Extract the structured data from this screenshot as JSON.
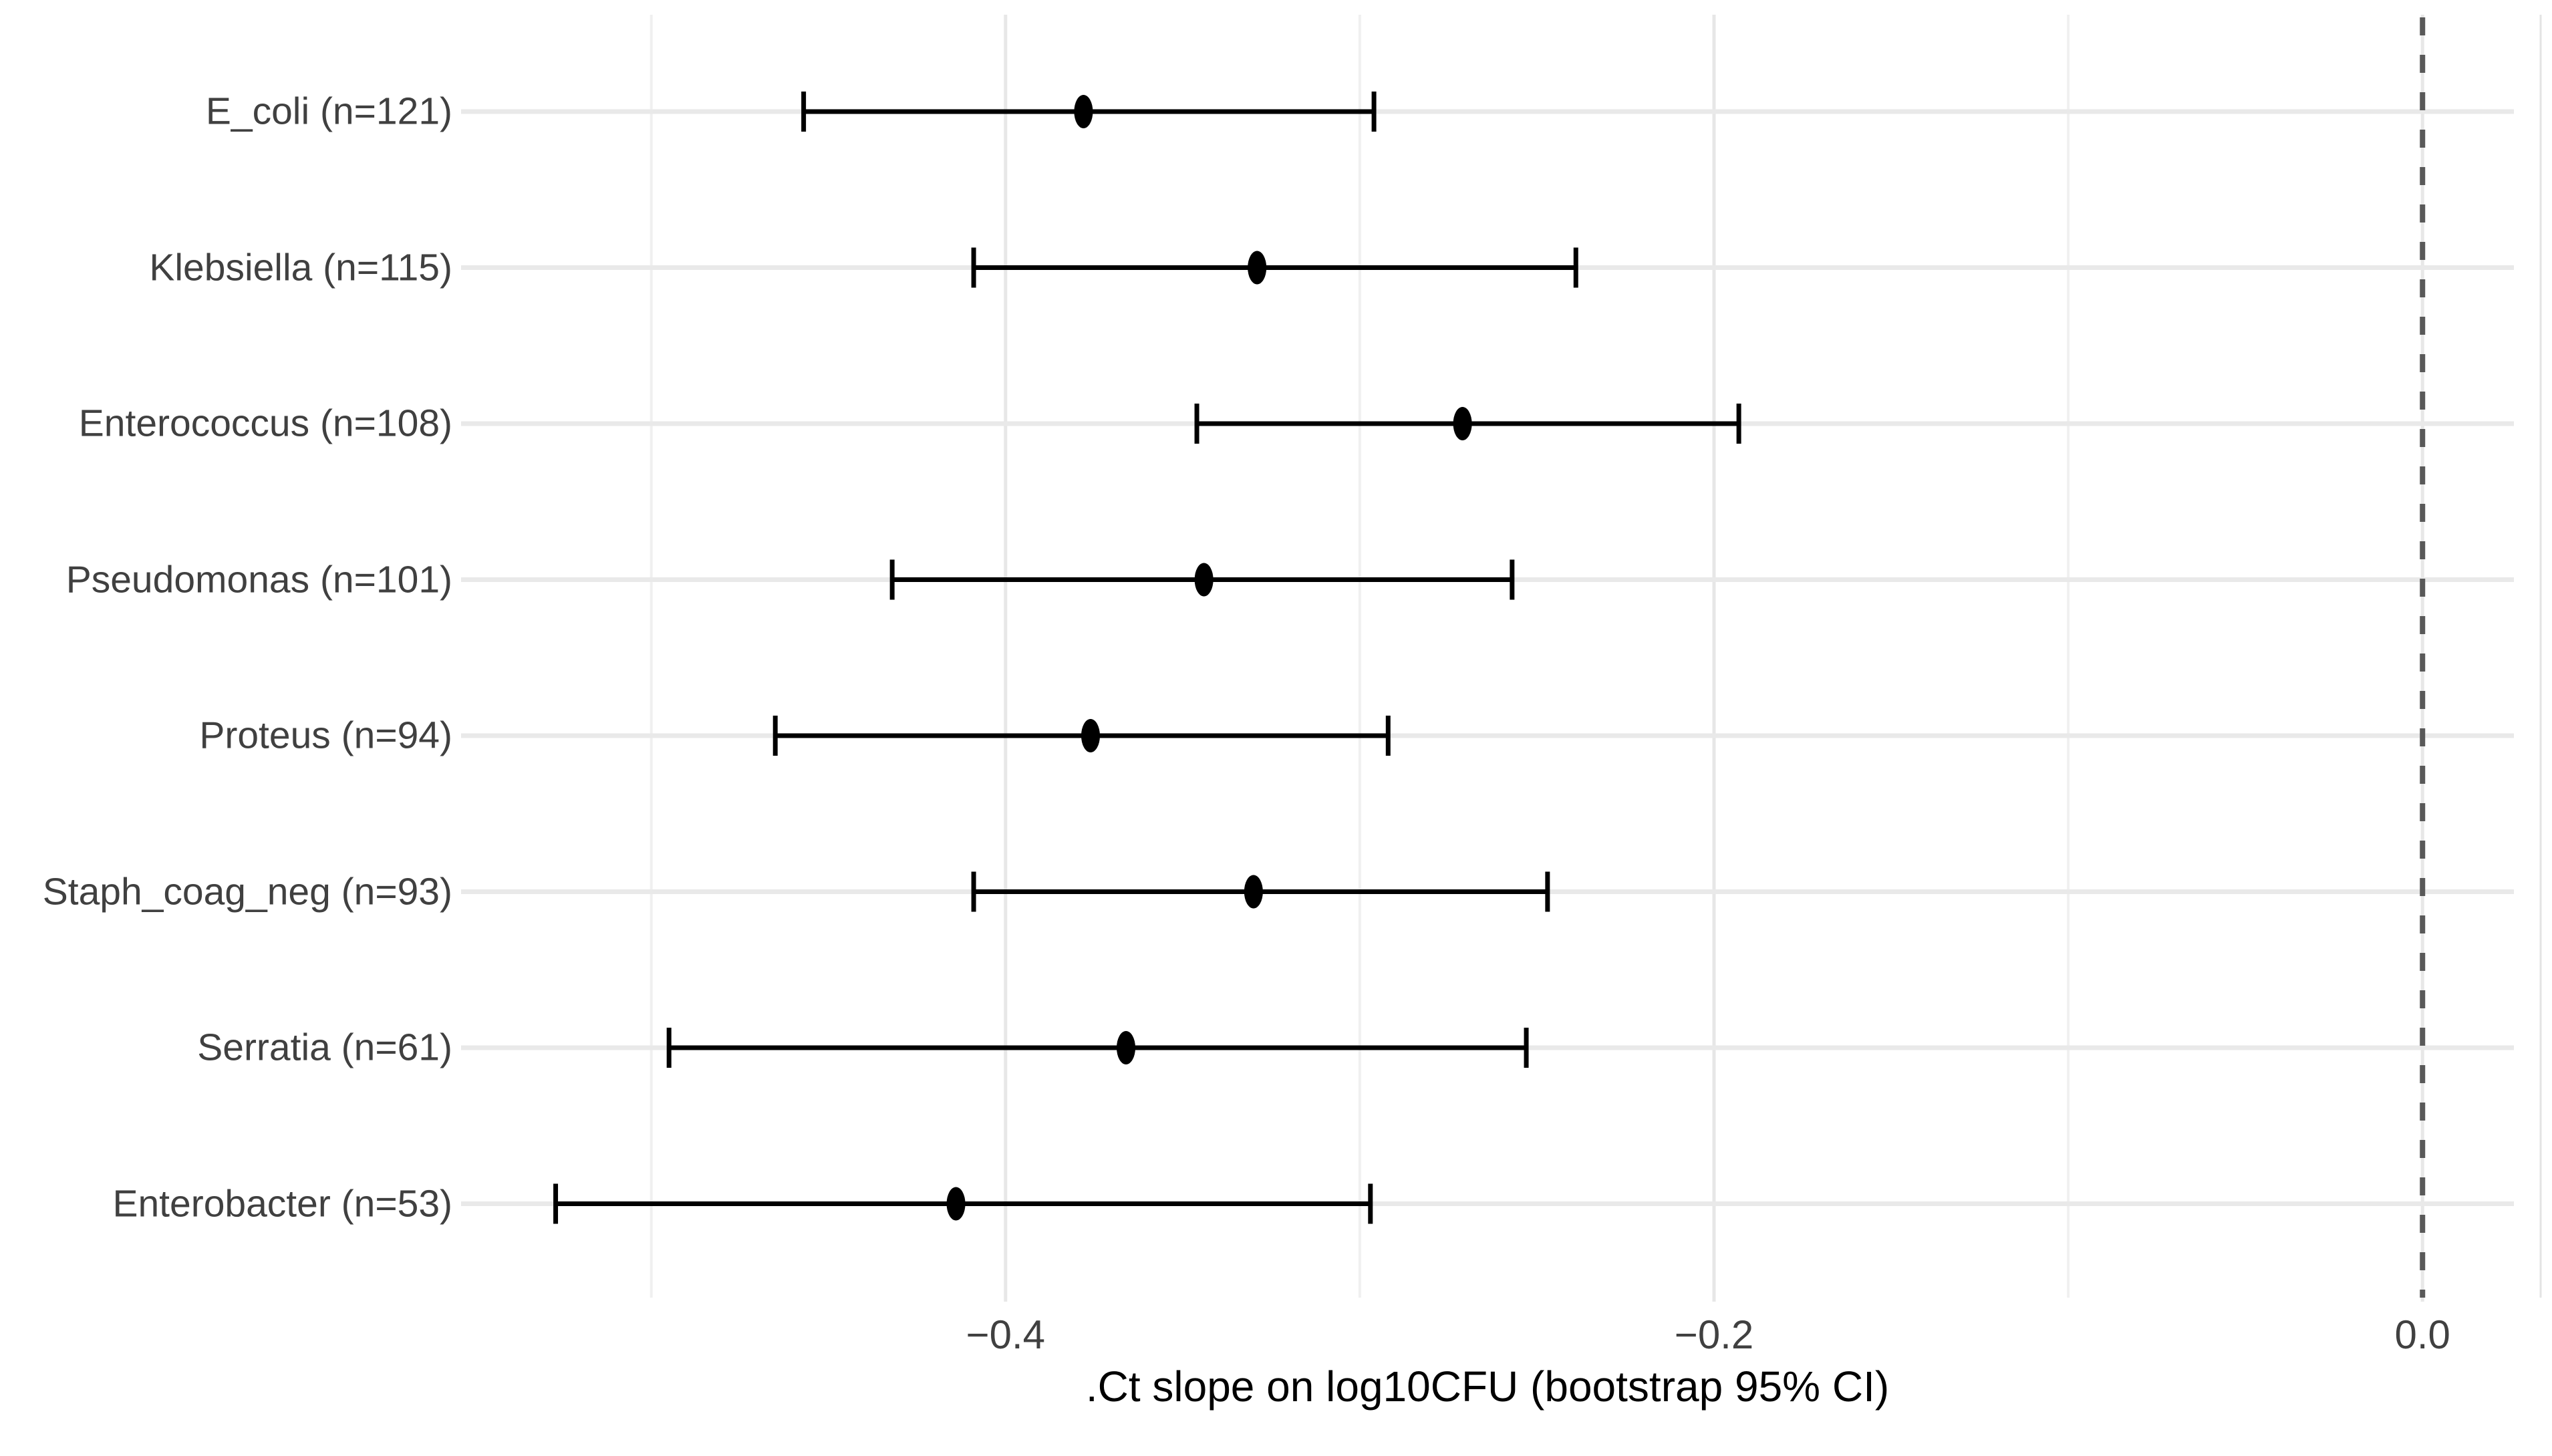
{
  "figure": {
    "background_color": "#ffffff",
    "panel_background_color": "#ffffff"
  },
  "chart_data": {
    "type": "scatter",
    "subtype": "forest-plot-dot-whisker",
    "title": "",
    "xlabel": ".Ct slope on log10CFU (bootstrap 95% CI)",
    "ylabel": "",
    "xlim": [
      -0.5537,
      0.0258
    ],
    "x_major_ticks": [
      -0.4,
      -0.2,
      0.0
    ],
    "x_tick_labels": [
      "−0.4",
      "−0.2",
      "0.0"
    ],
    "x_minor_gridlines": [
      -0.5,
      -0.3,
      -0.1
    ],
    "reference_line_x": 0.0,
    "reference_line_style": "dashed",
    "grid": "on",
    "legend": "none",
    "categories": [
      "E_coli (n=121)",
      "Klebsiella (n=115)",
      "Enterococcus (n=108)",
      "Pseudomonas (n=101)",
      "Proteus (n=94)",
      "Staph_coag_neg (n=93)",
      "Serratia (n=61)",
      "Enterobacter (n=53)"
    ],
    "series": [
      {
        "label": "E_coli (n=121)",
        "organism": "E_coli",
        "n": 121,
        "estimate": -0.378,
        "ci_low": -0.457,
        "ci_high": -0.296
      },
      {
        "label": "Klebsiella (n=115)",
        "organism": "Klebsiella",
        "n": 115,
        "estimate": -0.329,
        "ci_low": -0.409,
        "ci_high": -0.239
      },
      {
        "label": "Enterococcus (n=108)",
        "organism": "Enterococcus",
        "n": 108,
        "estimate": -0.271,
        "ci_low": -0.346,
        "ci_high": -0.193
      },
      {
        "label": "Pseudomonas (n=101)",
        "organism": "Pseudomonas",
        "n": 101,
        "estimate": -0.344,
        "ci_low": -0.432,
        "ci_high": -0.257
      },
      {
        "label": "Proteus (n=94)",
        "organism": "Proteus",
        "n": 94,
        "estimate": -0.376,
        "ci_low": -0.465,
        "ci_high": -0.292
      },
      {
        "label": "Staph_coag_neg (n=93)",
        "organism": "Staph_coag_neg",
        "n": 93,
        "estimate": -0.33,
        "ci_low": -0.409,
        "ci_high": -0.247
      },
      {
        "label": "Serratia (n=61)",
        "organism": "Serratia",
        "n": 61,
        "estimate": -0.366,
        "ci_low": -0.495,
        "ci_high": -0.253
      },
      {
        "label": "Enterobacter (n=53)",
        "organism": "Enterobacter",
        "n": 53,
        "estimate": -0.414,
        "ci_low": -0.527,
        "ci_high": -0.297
      }
    ]
  },
  "colors": {
    "point": "#000000",
    "errorbar": "#000000",
    "major_gridline": "#e7e7e7",
    "minor_gridline": "#f0f0f0",
    "row_gridline": "#e9e9e9",
    "reference_line": "#595959",
    "axis_text": "#404040",
    "axis_title": "#000000",
    "figure_edge_line": "#e4e4e4"
  }
}
